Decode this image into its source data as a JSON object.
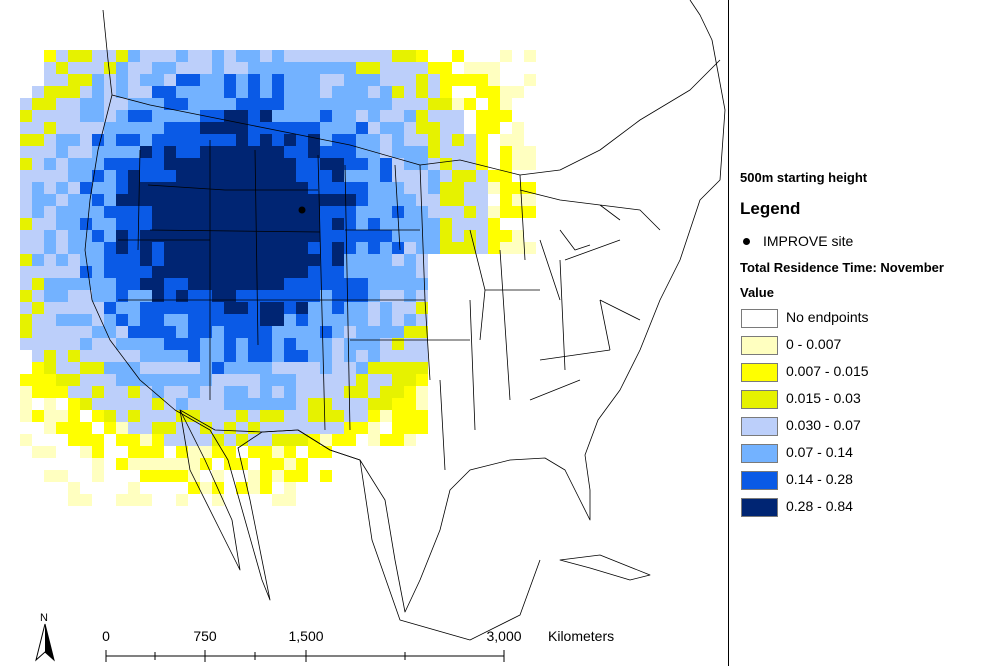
{
  "map": {
    "site_location": [
      -104.8,
      44.5
    ],
    "lon_range": [
      -128,
      -65
    ],
    "lat_range": [
      22,
      52
    ],
    "grid": {
      "cell_deg": 1,
      "palette": [
        "#ffffff",
        "#ffffc0",
        "#ffff00",
        "#e6f200",
        "#bccffa",
        "#73b2ff",
        "#0a5ae6",
        "#002573"
      ]
    }
  },
  "legend": {
    "subtitle": "500m starting height",
    "title": "Legend",
    "point_label": "IMPROVE site",
    "layer_title": "Total Residence Time: November",
    "field_label": "Value",
    "classes": [
      {
        "label": "No endpoints",
        "color": "#ffffff"
      },
      {
        "label": "0 - 0.007",
        "color": "#ffffc0"
      },
      {
        "label": "0.007 - 0.015",
        "color": "#ffff00"
      },
      {
        "label": "0.015 - 0.03",
        "color": "#e6f200"
      },
      {
        "label": "0.030 - 0.07",
        "color": "#bccffa"
      },
      {
        "label": "0.07 - 0.14",
        "color": "#73b2ff"
      },
      {
        "label": "0.14 - 0.28",
        "color": "#0a5ae6"
      },
      {
        "label": "0.28 - 0.84",
        "color": "#002573"
      }
    ]
  },
  "scale": {
    "ticks": [
      "0",
      "750",
      "1,500",
      "3,000"
    ],
    "unit": "Kilometers"
  },
  "north": {
    "label": "N"
  }
}
